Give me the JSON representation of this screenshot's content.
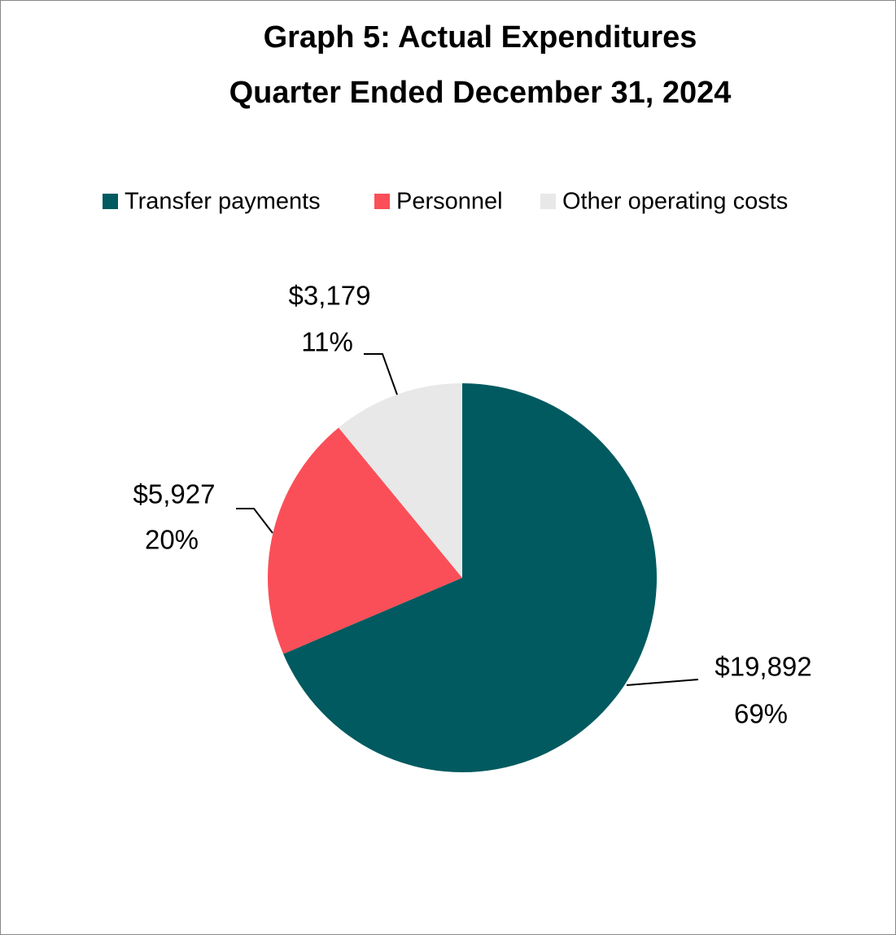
{
  "chart_data": {
    "type": "pie",
    "title": [
      "Graph 5: Actual Expenditures",
      "Quarter Ended December 31, 2024"
    ],
    "categories": [
      "Transfer payments",
      "Personnel",
      "Other operating costs"
    ],
    "values": [
      19892,
      5927,
      3179
    ],
    "value_labels": [
      "$19,892",
      "$5,927",
      "$3,179"
    ],
    "percents": [
      69,
      20,
      11
    ],
    "percent_labels": [
      "69%",
      "20%",
      "11%"
    ],
    "colors": [
      "#005a5f",
      "#fa4f58",
      "#e8e8e8"
    ],
    "legend": "top"
  }
}
